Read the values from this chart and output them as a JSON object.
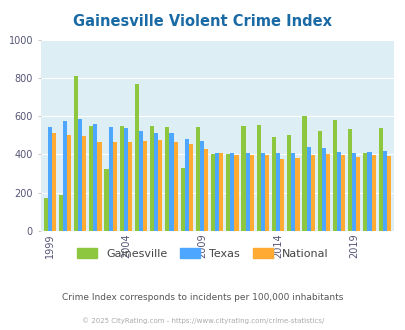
{
  "title": "Gainesville Violent Crime Index",
  "years": [
    1999,
    2000,
    2001,
    2002,
    2003,
    2004,
    2005,
    2006,
    2007,
    2008,
    2009,
    2010,
    2011,
    2012,
    2013,
    2014,
    2015,
    2016,
    2017,
    2018,
    2019,
    2020,
    2021
  ],
  "gainesville": [
    175,
    190,
    810,
    550,
    325,
    550,
    770,
    550,
    545,
    330,
    545,
    400,
    400,
    550,
    555,
    490,
    500,
    600,
    520,
    580,
    535,
    410,
    540
  ],
  "texas": [
    545,
    575,
    585,
    560,
    545,
    540,
    525,
    510,
    510,
    480,
    470,
    405,
    405,
    410,
    405,
    405,
    410,
    440,
    435,
    415,
    410,
    415,
    420
  ],
  "national": [
    510,
    500,
    495,
    465,
    465,
    465,
    470,
    475,
    465,
    455,
    430,
    405,
    395,
    395,
    395,
    375,
    380,
    395,
    400,
    395,
    385,
    395,
    390
  ],
  "ylim": [
    0,
    1000
  ],
  "yticks": [
    0,
    200,
    400,
    600,
    800,
    1000
  ],
  "xtick_years": [
    1999,
    2004,
    2009,
    2014,
    2019
  ],
  "bar_colors": [
    "#8dc63f",
    "#4da6ff",
    "#ffaa33"
  ],
  "plot_bg": "#ddeef5",
  "legend_labels": [
    "Gainesville",
    "Texas",
    "National"
  ],
  "subtitle": "Crime Index corresponds to incidents per 100,000 inhabitants",
  "footer": "© 2025 CityRating.com - https://www.cityrating.com/crime-statistics/",
  "title_color": "#1a6aa5",
  "subtitle_color": "#555555",
  "footer_color": "#aaaaaa",
  "grid_color": "#ffffff",
  "bar_width": 0.27,
  "figsize": [
    4.06,
    3.3
  ],
  "dpi": 100
}
